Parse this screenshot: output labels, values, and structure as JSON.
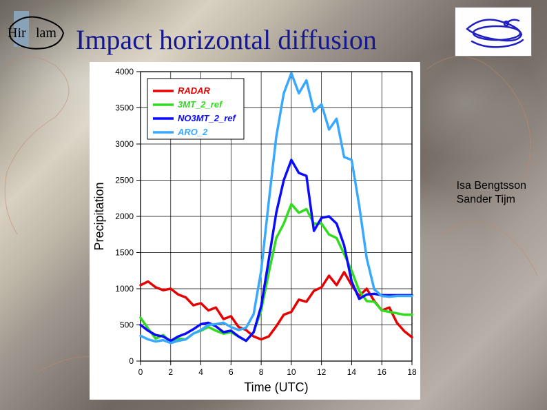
{
  "title": "Impact horizontal diffusion",
  "title_color": "#16188e",
  "title_fontsize": 40,
  "authors": [
    "Isa Bengtsson",
    "Sander Tijm"
  ],
  "logos": {
    "left_name": "hirlam-logo",
    "right_name": "aladin-logo"
  },
  "chart": {
    "type": "line",
    "background_color": "#ffffff",
    "plot_border_color": "#000000",
    "grid_color": "#000000",
    "xlabel": "Time (UTC)",
    "ylabel": "Precipitation",
    "label_fontsize": 18,
    "label_color": "#000000",
    "xlim": [
      0,
      18
    ],
    "ylim": [
      0,
      4000
    ],
    "xtick_step": 2,
    "ytick_step": 500,
    "tick_fontsize": 12,
    "legend": {
      "position": "top-left",
      "font_style": "italic",
      "font_weight": "bold",
      "fontsize": 13,
      "border_color": "#000000",
      "items": [
        {
          "label": "RADAR",
          "color": "#e60000"
        },
        {
          "label": "3MT_2_ref",
          "color": "#2fdc1e"
        },
        {
          "label": "NO3MT_2_ref",
          "color": "#0a0aff"
        },
        {
          "label": "ARO_2",
          "color": "#39a8ff"
        }
      ]
    },
    "line_width_primary": 3.5,
    "series": [
      {
        "name": "RADAR",
        "color": "#e60000",
        "points": [
          [
            0,
            1050
          ],
          [
            0.5,
            1100
          ],
          [
            1,
            1020
          ],
          [
            1.5,
            980
          ],
          [
            2,
            1000
          ],
          [
            2.5,
            920
          ],
          [
            3,
            880
          ],
          [
            3.5,
            770
          ],
          [
            4,
            800
          ],
          [
            4.5,
            700
          ],
          [
            5,
            740
          ],
          [
            5.5,
            580
          ],
          [
            6,
            620
          ],
          [
            6.5,
            470
          ],
          [
            7,
            430
          ],
          [
            7.5,
            340
          ],
          [
            8,
            300
          ],
          [
            8.5,
            340
          ],
          [
            9,
            480
          ],
          [
            9.5,
            640
          ],
          [
            10,
            680
          ],
          [
            10.5,
            850
          ],
          [
            11,
            820
          ],
          [
            11.5,
            970
          ],
          [
            12,
            1020
          ],
          [
            12.5,
            1180
          ],
          [
            13,
            1050
          ],
          [
            13.5,
            1230
          ],
          [
            14,
            1050
          ],
          [
            14.5,
            900
          ],
          [
            15,
            1000
          ],
          [
            15.5,
            830
          ],
          [
            16,
            700
          ],
          [
            16.5,
            740
          ],
          [
            17,
            530
          ],
          [
            17.5,
            410
          ],
          [
            18,
            330
          ]
        ]
      },
      {
        "name": "3MT_2_ref",
        "color": "#2fdc1e",
        "points": [
          [
            0,
            600
          ],
          [
            0.5,
            450
          ],
          [
            1,
            310
          ],
          [
            1.5,
            360
          ],
          [
            2,
            260
          ],
          [
            2.5,
            310
          ],
          [
            3,
            300
          ],
          [
            3.5,
            380
          ],
          [
            4,
            420
          ],
          [
            4.5,
            470
          ],
          [
            5,
            420
          ],
          [
            5.5,
            380
          ],
          [
            6,
            400
          ],
          [
            6.5,
            340
          ],
          [
            7,
            280
          ],
          [
            7.5,
            400
          ],
          [
            8,
            700
          ],
          [
            8.5,
            1220
          ],
          [
            9,
            1700
          ],
          [
            9.5,
            1900
          ],
          [
            10,
            2170
          ],
          [
            10.5,
            2050
          ],
          [
            11,
            2100
          ],
          [
            11.5,
            1900
          ],
          [
            12,
            1900
          ],
          [
            12.5,
            1750
          ],
          [
            13,
            1700
          ],
          [
            13.5,
            1480
          ],
          [
            14,
            1250
          ],
          [
            14.5,
            970
          ],
          [
            15,
            830
          ],
          [
            15.5,
            820
          ],
          [
            16,
            700
          ],
          [
            16.5,
            680
          ],
          [
            17,
            660
          ],
          [
            17.5,
            640
          ],
          [
            18,
            640
          ]
        ]
      },
      {
        "name": "NO3MT_2_ref",
        "color": "#0a0aff",
        "points": [
          [
            0,
            500
          ],
          [
            0.5,
            420
          ],
          [
            1,
            360
          ],
          [
            1.5,
            340
          ],
          [
            2,
            280
          ],
          [
            2.5,
            340
          ],
          [
            3,
            380
          ],
          [
            3.5,
            440
          ],
          [
            4,
            510
          ],
          [
            4.5,
            530
          ],
          [
            5,
            480
          ],
          [
            5.5,
            400
          ],
          [
            6,
            420
          ],
          [
            6.5,
            340
          ],
          [
            7,
            280
          ],
          [
            7.5,
            400
          ],
          [
            8,
            760
          ],
          [
            8.5,
            1400
          ],
          [
            9,
            2050
          ],
          [
            9.5,
            2500
          ],
          [
            10,
            2780
          ],
          [
            10.5,
            2600
          ],
          [
            11,
            2560
          ],
          [
            11.5,
            1800
          ],
          [
            12,
            1980
          ],
          [
            12.5,
            2000
          ],
          [
            13,
            1900
          ],
          [
            13.5,
            1600
          ],
          [
            14,
            1100
          ],
          [
            14.5,
            860
          ],
          [
            15,
            920
          ],
          [
            15.5,
            930
          ],
          [
            16,
            910
          ],
          [
            16.5,
            910
          ],
          [
            17,
            910
          ],
          [
            17.5,
            910
          ],
          [
            18,
            910
          ]
        ]
      },
      {
        "name": "ARO_2",
        "color": "#39a8ff",
        "points": [
          [
            0,
            350
          ],
          [
            0.5,
            300
          ],
          [
            1,
            270
          ],
          [
            1.5,
            290
          ],
          [
            2,
            250
          ],
          [
            2.5,
            280
          ],
          [
            3,
            300
          ],
          [
            3.5,
            380
          ],
          [
            4,
            430
          ],
          [
            4.5,
            500
          ],
          [
            5,
            510
          ],
          [
            5.5,
            530
          ],
          [
            6,
            470
          ],
          [
            6.5,
            430
          ],
          [
            7,
            460
          ],
          [
            7.5,
            650
          ],
          [
            8,
            1250
          ],
          [
            8.5,
            2200
          ],
          [
            9,
            3100
          ],
          [
            9.5,
            3700
          ],
          [
            10,
            3980
          ],
          [
            10.5,
            3700
          ],
          [
            11,
            3880
          ],
          [
            11.5,
            3450
          ],
          [
            12,
            3550
          ],
          [
            12.5,
            3200
          ],
          [
            13,
            3350
          ],
          [
            13.5,
            2820
          ],
          [
            14,
            2780
          ],
          [
            14.5,
            2150
          ],
          [
            15,
            1420
          ],
          [
            15.5,
            990
          ],
          [
            16,
            900
          ],
          [
            16.5,
            890
          ],
          [
            17,
            900
          ],
          [
            17.5,
            900
          ],
          [
            18,
            900
          ]
        ]
      }
    ]
  }
}
